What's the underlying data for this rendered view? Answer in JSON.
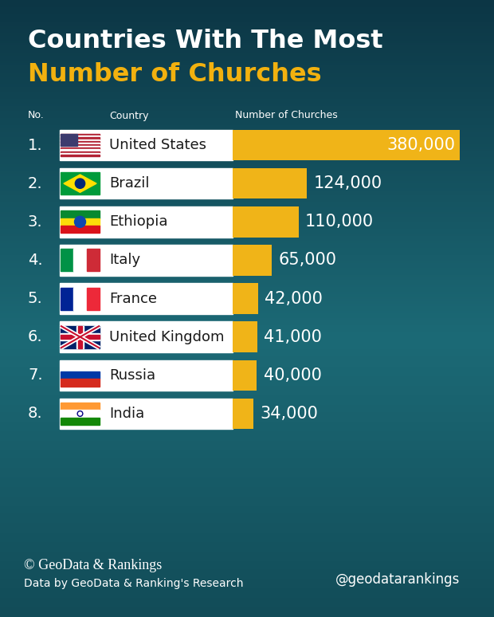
{
  "chart_data": {
    "type": "bar",
    "orientation": "horizontal",
    "title": "Countries With The Most",
    "subtitle": "Number of Churches",
    "headers": [
      "No.",
      "Country",
      "Number of Churches"
    ],
    "ranks": [
      "1.",
      "2.",
      "3.",
      "4.",
      "5.",
      "6.",
      "7.",
      "8."
    ],
    "categories": [
      "United States",
      "Brazil",
      "Ethiopia",
      "Italy",
      "France",
      "United Kingdom",
      "Russia",
      "India"
    ],
    "values": [
      380000,
      124000,
      110000,
      65000,
      42000,
      41000,
      40000,
      34000
    ],
    "value_labels": [
      "380,000",
      "124,000",
      "110,000",
      "65,000",
      "42,000",
      "41,000",
      "40,000",
      "34,000"
    ],
    "data_labels": true,
    "color": "#f0b418",
    "xlim": [
      0,
      380000
    ],
    "tick_labels": false,
    "grid": false,
    "copyright": "© GeoData & Rankings",
    "source": "Data by GeoData & Ranking's Research",
    "handle": "@geodatarankings"
  }
}
